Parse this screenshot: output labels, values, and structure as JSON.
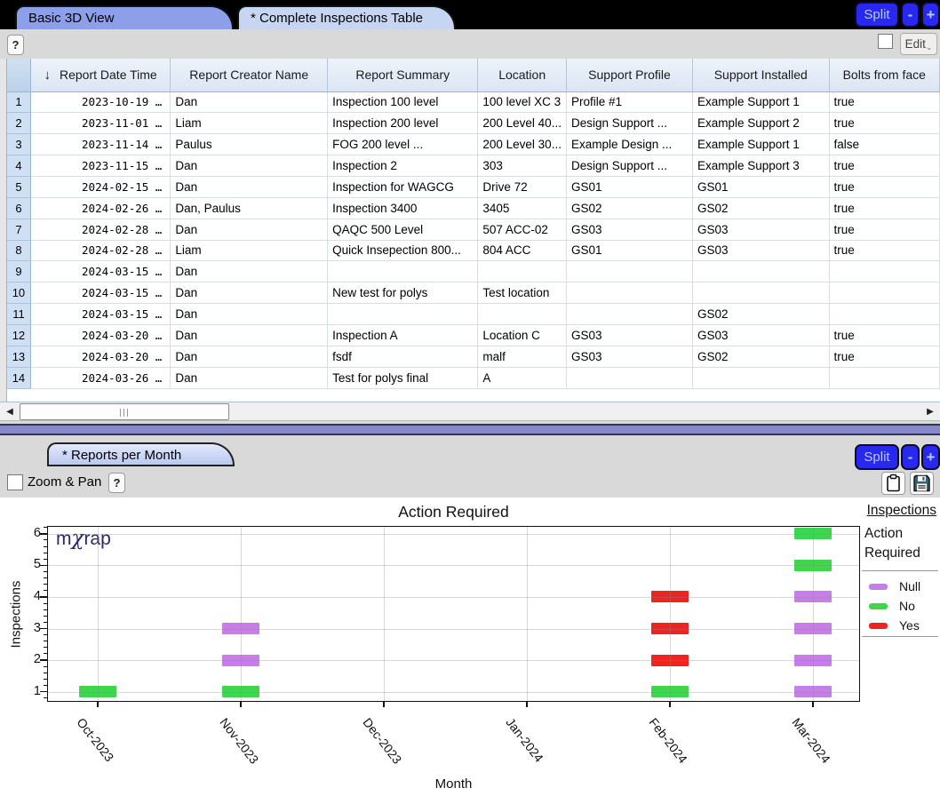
{
  "top_tabs": [
    {
      "label": "Basic 3D View",
      "active": false
    },
    {
      "label": "* Complete Inspections Table",
      "active": true
    }
  ],
  "bottom_tab": {
    "label": "* Reports per Month"
  },
  "split_controls": {
    "split": "Split",
    "collapse": "-",
    "expand": "+"
  },
  "toolbar_top": {
    "help": "?",
    "edit": "Edit"
  },
  "toolbar_bottom": {
    "zoom_pan": "Zoom & Pan",
    "help": "?"
  },
  "icons": {
    "sort_descending": "↓",
    "scroll_left": "◀",
    "scroll_right": "▶",
    "edit_caret": "⌄"
  },
  "table": {
    "columns": [
      "",
      "Report Date Time",
      "Report Creator Name",
      "Report Summary",
      "Location",
      "Support Profile",
      "Support Installed",
      "Bolts from face"
    ],
    "rows": [
      [
        "1",
        "2023-10-19 …",
        "Dan",
        "Inspection 100 level",
        "100 level XC 3",
        "Profile #1",
        "Example Support 1",
        "true"
      ],
      [
        "2",
        "2023-11-01 …",
        "Liam",
        "Inspection 200 level",
        "200 Level 40...",
        "Design Support ...",
        "Example Support 2",
        "true"
      ],
      [
        "3",
        "2023-11-14 …",
        "Paulus",
        "FOG 200 level ...",
        "200 Level 30...",
        "Example Design ...",
        "Example Support 1",
        "false"
      ],
      [
        "4",
        "2023-11-15 …",
        "Dan",
        "Inspection 2",
        "303",
        "Design Support ...",
        "Example Support 3",
        "true"
      ],
      [
        "5",
        "2024-02-15 …",
        "Dan",
        "Inspection for WAGCG",
        "Drive 72",
        "GS01",
        "GS01",
        "true"
      ],
      [
        "6",
        "2024-02-26 …",
        "Dan, Paulus",
        "Inspection 3400",
        "3405",
        "GS02",
        "GS02",
        "true"
      ],
      [
        "7",
        "2024-02-28 …",
        "Dan",
        "QAQC 500 Level",
        "507 ACC-02",
        "GS03",
        "GS03",
        "true"
      ],
      [
        "8",
        "2024-02-28 …",
        "Liam",
        "Quick Insepection 800...",
        "804 ACC",
        "GS01",
        "GS03",
        "true"
      ],
      [
        "9",
        "2024-03-15 …",
        "Dan",
        "",
        "",
        "",
        "",
        ""
      ],
      [
        "10",
        "2024-03-15 …",
        "Dan",
        "New test for polys",
        "Test location",
        "",
        "",
        ""
      ],
      [
        "11",
        "2024-03-15 …",
        "Dan",
        "",
        "",
        "",
        "GS02",
        ""
      ],
      [
        "12",
        "2024-03-20 …",
        "Dan",
        "Inspection A",
        "Location C",
        "GS03",
        "GS03",
        "true"
      ],
      [
        "13",
        "2024-03-20 …",
        "Dan",
        "fsdf",
        "malf",
        "GS03",
        "GS02",
        "true"
      ],
      [
        "14",
        "2024-03-26 …",
        "Dan",
        "Test for polys final",
        "A",
        "",
        "",
        ""
      ]
    ]
  },
  "chart": {
    "link_top_right": "Inspections",
    "logo_prefix": "m",
    "logo_chi": "χ",
    "logo_suffix": "rap"
  },
  "chart_data": {
    "type": "bar",
    "title": "Action Required",
    "xlabel": "Month",
    "ylabel": "Inspections",
    "categories": [
      "Oct-2023",
      "Nov-2023",
      "Dec-2023",
      "Jan-2024",
      "Feb-2024",
      "Mar-2024"
    ],
    "yticks": [
      1,
      2,
      3,
      4,
      5,
      6
    ],
    "ylim": [
      0.68,
      6.25
    ],
    "grid": true,
    "legend": {
      "position": "right",
      "title": "Action Required",
      "entries": [
        {
          "label": "Null",
          "color": "#c57fe6"
        },
        {
          "label": "No",
          "color": "#3fd64d"
        },
        {
          "label": "Yes",
          "color": "#ec2424"
        }
      ]
    },
    "marks_note": "each mark is one inspection report plotted at its per-month count position",
    "marks": [
      {
        "month": "Oct-2023",
        "y": 1,
        "status": "No"
      },
      {
        "month": "Nov-2023",
        "y": 1,
        "status": "No"
      },
      {
        "month": "Nov-2023",
        "y": 2,
        "status": "Null"
      },
      {
        "month": "Nov-2023",
        "y": 3,
        "status": "Null"
      },
      {
        "month": "Feb-2024",
        "y": 1,
        "status": "No"
      },
      {
        "month": "Feb-2024",
        "y": 2,
        "status": "Yes"
      },
      {
        "month": "Feb-2024",
        "y": 3,
        "status": "Yes"
      },
      {
        "month": "Feb-2024",
        "y": 4,
        "status": "Yes"
      },
      {
        "month": "Mar-2024",
        "y": 1,
        "status": "Null"
      },
      {
        "month": "Mar-2024",
        "y": 2,
        "status": "Null"
      },
      {
        "month": "Mar-2024",
        "y": 3,
        "status": "Null"
      },
      {
        "month": "Mar-2024",
        "y": 4,
        "status": "Null"
      },
      {
        "month": "Mar-2024",
        "y": 5,
        "status": "No"
      },
      {
        "month": "Mar-2024",
        "y": 6,
        "status": "No"
      }
    ],
    "series": [
      {
        "name": "Null",
        "values_by_month": [
          0,
          2,
          0,
          0,
          0,
          4
        ]
      },
      {
        "name": "No",
        "values_by_month": [
          1,
          1,
          0,
          0,
          1,
          2
        ]
      },
      {
        "name": "Yes",
        "values_by_month": [
          0,
          0,
          0,
          0,
          3,
          0
        ]
      }
    ]
  }
}
